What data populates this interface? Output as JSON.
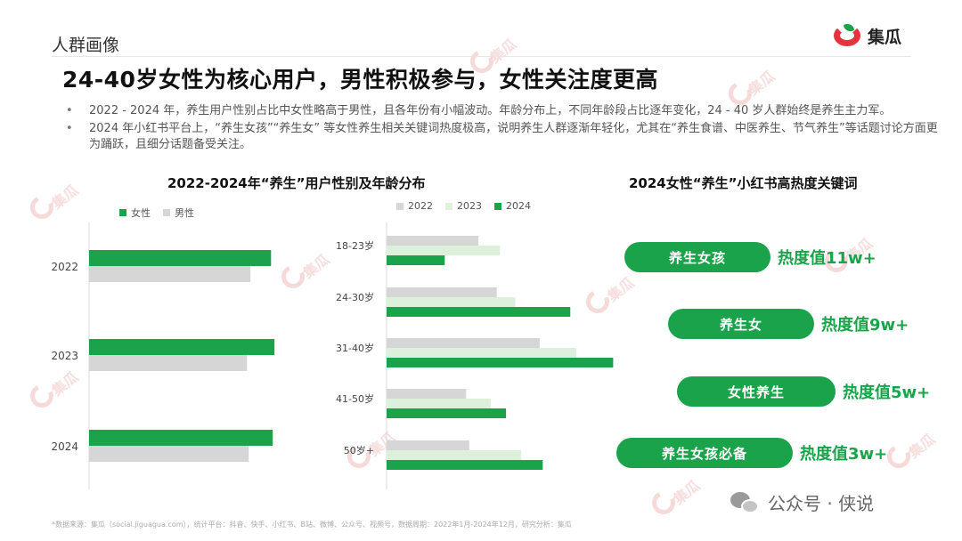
{
  "header": {
    "section": "人群画像",
    "logo_text": "集瓜"
  },
  "headline": "24-40岁女性为核心用户，男性积极参与，女性关注度更高",
  "bullets": [
    "2022 - 2024 年，养生用户性别占比中女性略高于男性，且各年份有小幅波动。年龄分布上，不同年龄段占比逐年变化，24 - 40 岁人群始终是养生主力军。",
    "2024 年小红书平台上，“养生女孩”“养生女” 等女性养生相关关键词热度极高，说明养生人群逐渐年轻化，尤其在“养生食谱、中医养生、节气养生”等话题讨论方面更为踊跃，且细分话题备受关注。"
  ],
  "bullet_marker": "•",
  "left_title": "2022-2024年“养生”用户性别及年龄分布",
  "right_title": "2024女性“养生”小红书高热度关键词",
  "colors": {
    "green": "#1aa34a",
    "gray": "#d6d6d6",
    "light_green": "#dcf0dc",
    "logo_red": "#e6323c"
  },
  "chart_data": [
    {
      "type": "bar",
      "orientation": "horizontal",
      "categories": [
        "2022",
        "2023",
        "2024"
      ],
      "series": [
        {
          "name": "女性",
          "color": "#1aa34a",
          "values": [
            53,
            54,
            53.5
          ]
        },
        {
          "name": "男性",
          "color": "#d6d6d6",
          "values": [
            47,
            46,
            46.5
          ]
        }
      ],
      "xlim": [
        0,
        55
      ],
      "grid": false,
      "legend": "top-left"
    },
    {
      "type": "bar",
      "orientation": "horizontal",
      "categories": [
        "18-23岁",
        "24-30岁",
        "31-40岁",
        "41-50岁",
        "50岁+"
      ],
      "series": [
        {
          "name": "2022",
          "color": "#d6d6d6",
          "values": [
            15,
            18,
            25,
            13,
            13.5
          ]
        },
        {
          "name": "2023",
          "color": "#dcf0dc",
          "values": [
            18.5,
            21,
            31,
            17,
            22
          ]
        },
        {
          "name": "2024",
          "color": "#1aa34a",
          "values": [
            9.5,
            30,
            37,
            19.5,
            25.5
          ]
        }
      ],
      "xlim": [
        0,
        40
      ],
      "grid": false,
      "legend": "top-left"
    }
  ],
  "keywords": [
    {
      "label": "养生女孩",
      "heat": "热度值11w+"
    },
    {
      "label": "养生女",
      "heat": "热度值9w+"
    },
    {
      "label": "女性养生",
      "heat": "热度值5w+"
    },
    {
      "label": "养生女孩必备",
      "heat": "热度值3w+"
    }
  ],
  "footnote": "*数据来源：集瓜（social.jiguaguа.com），统计平台：抖音、快手、小红书、B站、微博、公众号、视频号，数据周期：2022年1月-2024年12月，研究分析：集瓜",
  "source_tag": "公众号 · 侠说",
  "watermark": "集瓜"
}
